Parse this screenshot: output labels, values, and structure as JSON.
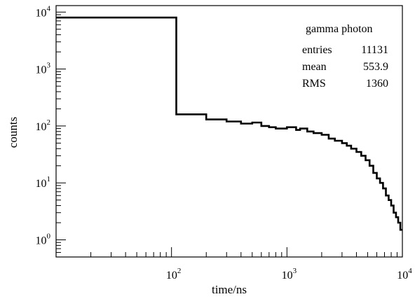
{
  "chart_data": {
    "type": "line",
    "style": "step-histogram",
    "title": "",
    "xlabel": "time/ns",
    "ylabel": "counts",
    "xscale": "log",
    "yscale": "log",
    "xlim": [
      10,
      10000
    ],
    "ylim": [
      0.5,
      13000
    ],
    "grid": false,
    "x_ticks": [
      {
        "value": 100,
        "base": "10",
        "exp": "2"
      },
      {
        "value": 1000,
        "base": "10",
        "exp": "3"
      },
      {
        "value": 10000,
        "base": "10",
        "exp": "4"
      }
    ],
    "y_ticks": [
      {
        "value": 1,
        "base": "10",
        "exp": "0"
      },
      {
        "value": 10,
        "base": "10",
        "exp": "1"
      },
      {
        "value": 100,
        "base": "10",
        "exp": "2"
      },
      {
        "value": 1000,
        "base": "10",
        "exp": "3"
      },
      {
        "value": 10000,
        "base": "10",
        "exp": "4"
      }
    ],
    "stats_box": {
      "position": "top-right",
      "title": "gamma photon",
      "rows": [
        {
          "label": "entries",
          "value": "11131"
        },
        {
          "label": "mean",
          "value": "553.9"
        },
        {
          "label": "RMS",
          "value": "1360"
        }
      ]
    },
    "series": [
      {
        "x": [
          10,
          110,
          200,
          300,
          400,
          500,
          600,
          700,
          800,
          1000,
          1200,
          1300,
          1500,
          1700,
          2000,
          2300,
          2600,
          3000,
          3300,
          3600,
          4000,
          4400,
          4800,
          5200,
          5600,
          6000,
          6400,
          6800,
          7200,
          7600,
          8000,
          8400,
          8800,
          9200,
          9600,
          10000
        ],
        "y": [
          8000,
          160,
          130,
          120,
          110,
          115,
          100,
          95,
          90,
          95,
          85,
          90,
          80,
          75,
          70,
          60,
          55,
          50,
          45,
          40,
          35,
          30,
          25,
          20,
          15,
          12,
          10,
          8,
          6,
          5,
          4,
          3,
          2.5,
          2,
          1.5,
          1.5
        ]
      }
    ]
  }
}
